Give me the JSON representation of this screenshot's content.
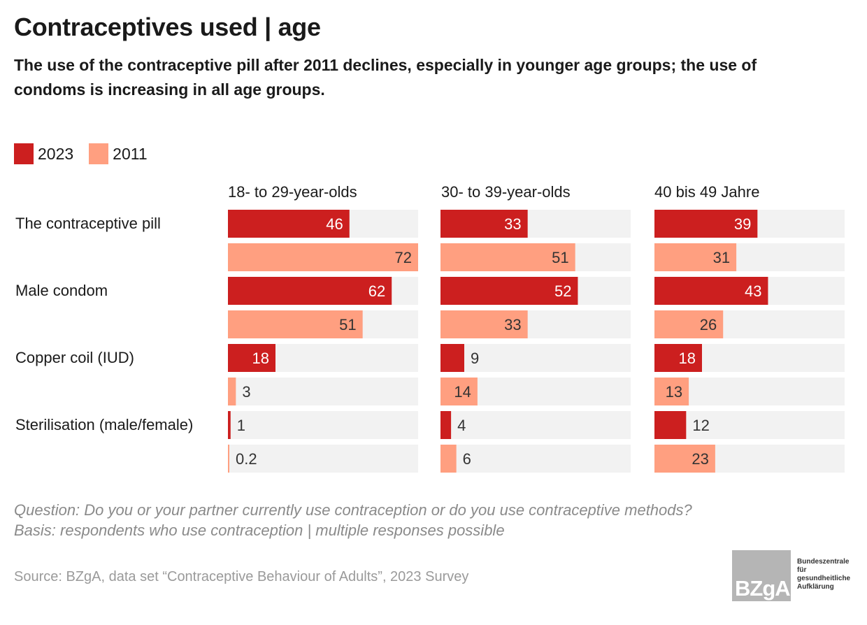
{
  "title": "Contraceptives used | age",
  "subtitle": "The use of the contraceptive pill after 2011 declines, especially in younger age groups; the use of condoms is increasing in all age groups.",
  "legend": [
    {
      "label": "2023",
      "color": "#cc1f1f"
    },
    {
      "label": "2011",
      "color": "#ff9f80"
    }
  ],
  "note_question": "Question: Do you or your partner currently use contraception or do you use contraceptive methods?",
  "note_basis": "Basis: respondents who use contraception | multiple responses possible",
  "source": "Source: BZgA, data set “Contraceptive Behaviour of Adults”, 2023 Survey",
  "logo": {
    "mark": "BZgA",
    "text": [
      "Bundeszentrale",
      "für",
      "gesundheitliche",
      "Aufklärung"
    ]
  },
  "chart_data": {
    "type": "bar",
    "orientation": "horizontal",
    "xlim": [
      0,
      100
    ],
    "categories": [
      "The contraceptive pill",
      "Male condom",
      "Copper coil (IUD)",
      "Sterilisation (male/female)"
    ],
    "panels": [
      {
        "title": "18- to 29-year-olds",
        "series": [
          {
            "name": "2023",
            "values": [
              46,
              62,
              18,
              1
            ]
          },
          {
            "name": "2011",
            "values": [
              72,
              51,
              3,
              0.2
            ]
          }
        ]
      },
      {
        "title": "30- to 39-year-olds",
        "series": [
          {
            "name": "2023",
            "values": [
              33,
              52,
              9,
              4
            ]
          },
          {
            "name": "2011",
            "values": [
              51,
              33,
              14,
              6
            ]
          }
        ]
      },
      {
        "title": "40 bis 49 Jahre",
        "series": [
          {
            "name": "2023",
            "values": [
              39,
              43,
              18,
              12
            ]
          },
          {
            "name": "2011",
            "values": [
              31,
              26,
              13,
              23
            ]
          }
        ]
      }
    ],
    "colors": {
      "2023": "#cc1f1f",
      "2011": "#ff9f80",
      "track": "#f2f2f2"
    }
  }
}
